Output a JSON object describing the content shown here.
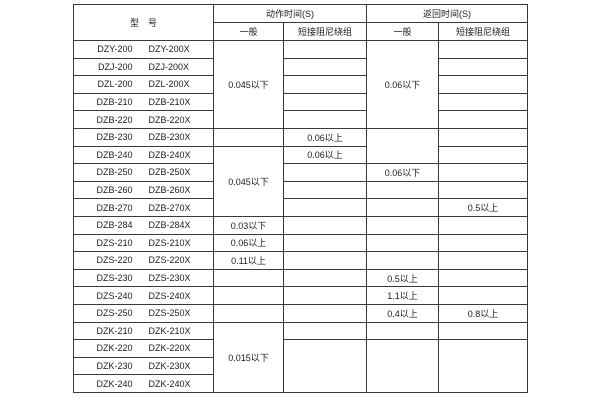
{
  "page": {
    "background": "#ffffff",
    "border_color": "#3a3a3a",
    "text_color": "#1c1c1c"
  },
  "header": {
    "model_label": "型　号",
    "action_time_label": "动作时间(S)",
    "return_time_label": "返回时间(S)",
    "general_label": "一般",
    "damping_label": "短接阻尼绕组"
  },
  "rows": [
    {
      "model": [
        "DZY-200",
        "DZY-200X"
      ],
      "cells": [
        {
          "col": "action-general",
          "text": "0.045以下",
          "rowspan": 5
        },
        {
          "col": "action-damping",
          "text": "",
          "rowspan": 1
        },
        {
          "col": "return-general",
          "text": "0.06以下",
          "rowspan": 5
        },
        {
          "col": "return-damping",
          "text": "",
          "rowspan": 1
        }
      ]
    },
    {
      "model": [
        "DZJ-200",
        "DZJ-200X"
      ],
      "cells": [
        {
          "col": "action-damping",
          "text": "",
          "rowspan": 1
        },
        {
          "col": "return-damping",
          "text": "",
          "rowspan": 1
        }
      ]
    },
    {
      "model": [
        "DZL-200",
        "DZL-200X"
      ],
      "cells": [
        {
          "col": "action-damping",
          "text": "",
          "rowspan": 1
        },
        {
          "col": "return-damping",
          "text": "",
          "rowspan": 1
        }
      ]
    },
    {
      "model": [
        "DZB-210",
        "DZB-210X"
      ],
      "cells": [
        {
          "col": "action-damping",
          "text": "",
          "rowspan": 1
        },
        {
          "col": "return-damping",
          "text": "",
          "rowspan": 1
        }
      ]
    },
    {
      "model": [
        "DZB-220",
        "DZB-220X"
      ],
      "cells": [
        {
          "col": "action-damping",
          "text": "",
          "rowspan": 1
        },
        {
          "col": "return-damping",
          "text": "",
          "rowspan": 1
        }
      ]
    },
    {
      "model": [
        "DZB-230",
        "DZB-230X"
      ],
      "cells": [
        {
          "col": "action-general",
          "text": "",
          "rowspan": 1
        },
        {
          "col": "action-damping",
          "text": "0.06以上",
          "rowspan": 1
        },
        {
          "col": "return-general",
          "text": "",
          "rowspan": 2
        },
        {
          "col": "return-damping",
          "text": "",
          "rowspan": 1
        }
      ]
    },
    {
      "model": [
        "DZB-240",
        "DZB-240X"
      ],
      "cells": [
        {
          "col": "action-general",
          "text": "0.045以下",
          "rowspan": 4
        },
        {
          "col": "action-damping",
          "text": "0.06以上",
          "rowspan": 1
        },
        {
          "col": "return-damping",
          "text": "",
          "rowspan": 1
        }
      ]
    },
    {
      "model": [
        "DZB-250",
        "DZB-250X"
      ],
      "cells": [
        {
          "col": "action-damping",
          "text": "",
          "rowspan": 1
        },
        {
          "col": "return-general",
          "text": "0.06以下",
          "rowspan": 1
        },
        {
          "col": "return-damping",
          "text": "",
          "rowspan": 1
        }
      ]
    },
    {
      "model": [
        "DZB-260",
        "DZB-260X"
      ],
      "cells": [
        {
          "col": "action-damping",
          "text": "",
          "rowspan": 1
        },
        {
          "col": "return-general",
          "text": "",
          "rowspan": 1
        },
        {
          "col": "return-damping",
          "text": "",
          "rowspan": 1
        }
      ]
    },
    {
      "model": [
        "DZB-270",
        "DZB-270X"
      ],
      "cells": [
        {
          "col": "action-damping",
          "text": "",
          "rowspan": 1
        },
        {
          "col": "return-general",
          "text": "",
          "rowspan": 1
        },
        {
          "col": "return-damping",
          "text": "0.5以上",
          "rowspan": 1
        }
      ]
    },
    {
      "model": [
        "DZB-284",
        "DZB-284X"
      ],
      "cells": [
        {
          "col": "action-general",
          "text": "0.03以下",
          "rowspan": 1
        },
        {
          "col": "action-damping",
          "text": "",
          "rowspan": 1
        },
        {
          "col": "return-general",
          "text": "",
          "rowspan": 1
        },
        {
          "col": "return-damping",
          "text": "",
          "rowspan": 1
        }
      ]
    },
    {
      "model": [
        "DZS-210",
        "DZS-210X"
      ],
      "cells": [
        {
          "col": "action-general",
          "text": "0.06以上",
          "rowspan": 1
        },
        {
          "col": "action-damping",
          "text": "",
          "rowspan": 1
        },
        {
          "col": "return-general",
          "text": "",
          "rowspan": 1
        },
        {
          "col": "return-damping",
          "text": "",
          "rowspan": 1
        }
      ]
    },
    {
      "model": [
        "DZS-220",
        "DZS-220X"
      ],
      "cells": [
        {
          "col": "action-general",
          "text": "0.11以上",
          "rowspan": 1
        },
        {
          "col": "action-damping",
          "text": "",
          "rowspan": 1
        },
        {
          "col": "return-general",
          "text": "",
          "rowspan": 1
        },
        {
          "col": "return-damping",
          "text": "",
          "rowspan": 1
        }
      ]
    },
    {
      "model": [
        "DZS-230",
        "DZS-230X"
      ],
      "cells": [
        {
          "col": "action-general",
          "text": "",
          "rowspan": 1
        },
        {
          "col": "action-damping",
          "text": "",
          "rowspan": 1
        },
        {
          "col": "return-general",
          "text": "0.5以上",
          "rowspan": 1
        },
        {
          "col": "return-damping",
          "text": "",
          "rowspan": 1
        }
      ]
    },
    {
      "model": [
        "DZS-240",
        "DZS-240X"
      ],
      "cells": [
        {
          "col": "action-general",
          "text": "",
          "rowspan": 1
        },
        {
          "col": "action-damping",
          "text": "",
          "rowspan": 1
        },
        {
          "col": "return-general",
          "text": "1.1以上",
          "rowspan": 1
        },
        {
          "col": "return-damping",
          "text": "",
          "rowspan": 1
        }
      ]
    },
    {
      "model": [
        "DZS-250",
        "DZS-250X"
      ],
      "cells": [
        {
          "col": "action-general",
          "text": "",
          "rowspan": 1
        },
        {
          "col": "action-damping",
          "text": "",
          "rowspan": 1
        },
        {
          "col": "return-general",
          "text": "0.4以上",
          "rowspan": 1
        },
        {
          "col": "return-damping",
          "text": "0.8以上",
          "rowspan": 1
        }
      ]
    },
    {
      "model": [
        "DZK-210",
        "DZK-210X"
      ],
      "cells": [
        {
          "col": "action-general",
          "text": "0.015以下",
          "rowspan": 4
        },
        {
          "col": "action-damping",
          "text": "",
          "rowspan": 1
        },
        {
          "col": "return-general",
          "text": "",
          "rowspan": 1
        },
        {
          "col": "return-damping",
          "text": "",
          "rowspan": 1
        }
      ]
    },
    {
      "model": [
        "DZK-220",
        "DZK-220X"
      ],
      "cells": [
        {
          "col": "action-damping",
          "text": "",
          "rowspan": 3
        },
        {
          "col": "return-general",
          "text": "",
          "rowspan": 3
        },
        {
          "col": "return-damping",
          "text": "",
          "rowspan": 3
        }
      ]
    },
    {
      "model": [
        "DZK-230",
        "DZK-230X"
      ],
      "cells": []
    },
    {
      "model": [
        "DZK-240",
        "DZK-240X"
      ],
      "cells": []
    }
  ]
}
